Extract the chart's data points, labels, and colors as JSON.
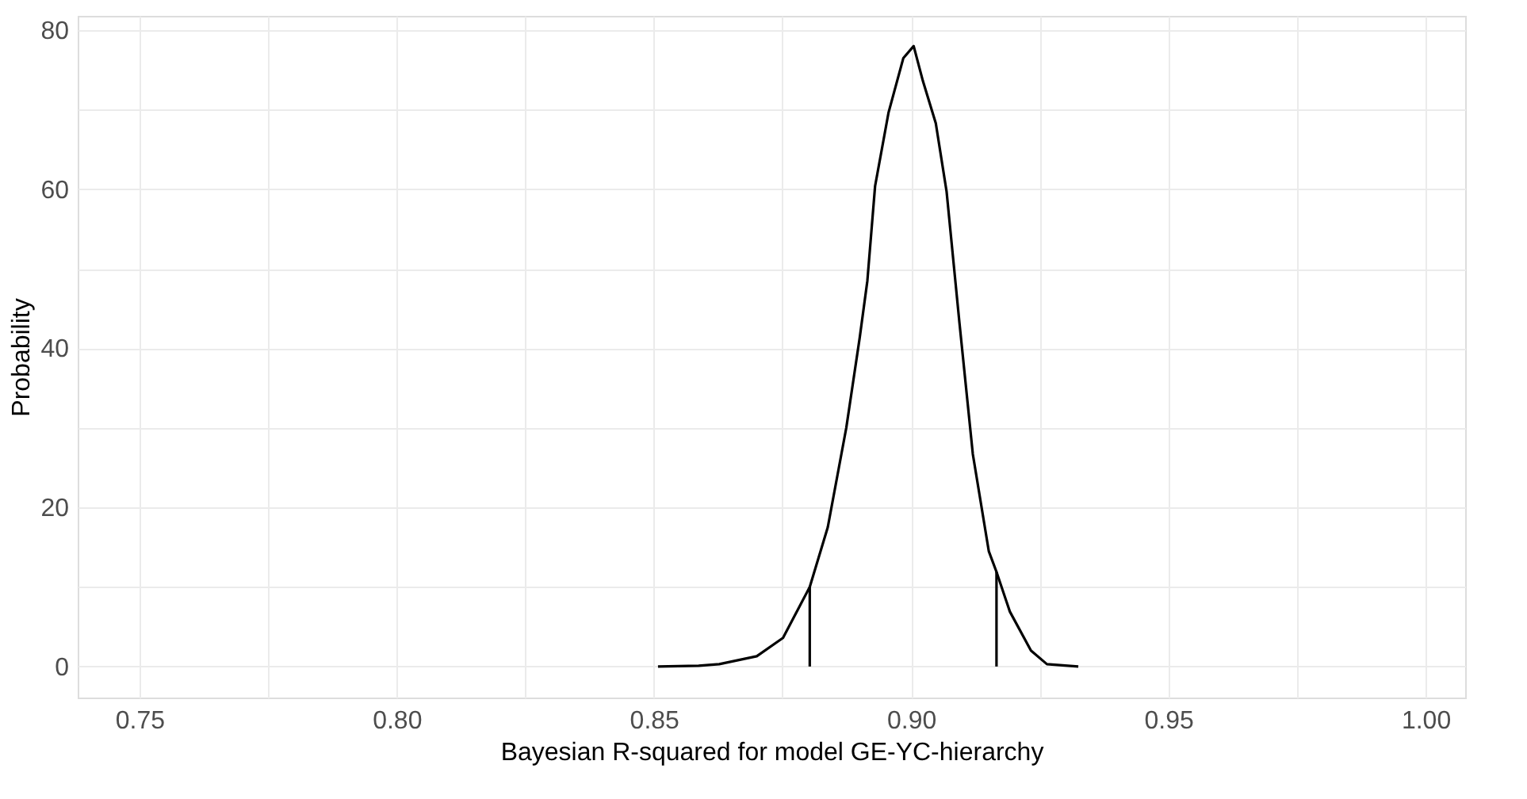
{
  "chart_data": {
    "type": "line",
    "xlabel": "Bayesian R-squared for model GE-YC-hierarchy",
    "ylabel": "Probability",
    "series": [
      {
        "color": "#000000",
        "x": [
          0.8508,
          0.8587,
          0.8627,
          0.87,
          0.8751,
          0.8803,
          0.8838,
          0.8874,
          0.89,
          0.8915,
          0.893,
          0.8956,
          0.8985,
          0.9005,
          0.9023,
          0.9048,
          0.9069,
          0.9094,
          0.912,
          0.9151,
          0.9166,
          0.9192,
          0.9233,
          0.9264,
          0.9325
        ],
        "values": [
          0,
          0.1,
          0.3,
          1.3,
          3.6,
          10,
          17.5,
          30,
          41.3,
          48.5,
          60.4,
          69.6,
          76.5,
          78,
          73.6,
          68.3,
          59.7,
          43.2,
          26.7,
          14.5,
          11.9,
          6.9,
          2.0,
          0.3,
          0
        ]
      },
      {
        "color": "#000000",
        "x": [
          0.8803,
          0.8803
        ],
        "values": [
          0,
          10
        ]
      },
      {
        "color": "#000000",
        "x": [
          0.9166,
          0.9166
        ],
        "values": [
          0,
          11.9
        ]
      }
    ],
    "xlim": [
      0.738,
      1.0077
    ],
    "ylim": [
      -3.9,
      81.8
    ],
    "xticks": [
      0.75,
      {
        "value": 0.775,
        "label": null
      },
      {
        "value": 0.8,
        "label": "0.80"
      },
      {
        "value": 0.825,
        "label": null
      },
      0.85,
      {
        "value": 0.875,
        "label": null
      },
      {
        "value": 0.9,
        "label": "0.90"
      },
      {
        "value": 0.925,
        "label": null
      },
      0.95,
      {
        "value": 0.975,
        "label": null
      },
      {
        "value": 1.0,
        "label": "1.00"
      }
    ],
    "yticks": [
      0,
      {
        "value": 10,
        "label": null
      },
      20,
      {
        "value": 30,
        "label": null
      },
      40,
      {
        "value": 50,
        "label": null
      },
      60,
      {
        "value": 70,
        "label": null
      },
      80
    ],
    "grid": true,
    "marker": "none",
    "line_style": "solid"
  }
}
